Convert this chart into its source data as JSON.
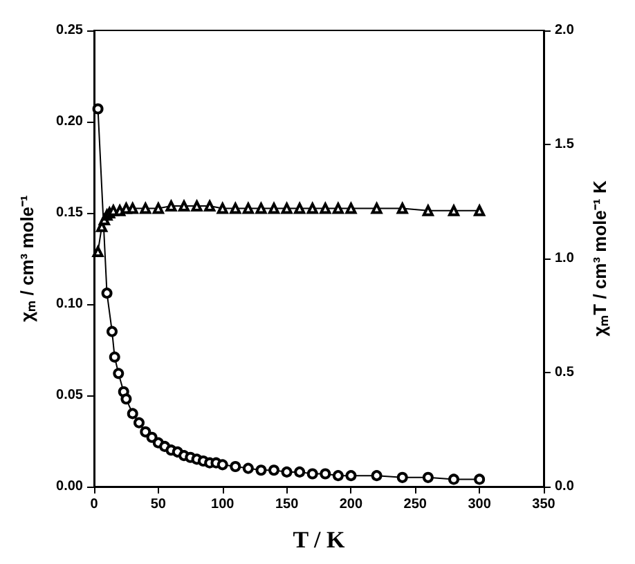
{
  "chart_data": {
    "type": "line",
    "xlabel": "T / K",
    "ylabel": "χₘ / cm³ mole⁻¹",
    "y2label": "χₘT / cm³ mole⁻¹ K",
    "xlim": [
      0,
      350
    ],
    "xticks": [
      0,
      50,
      100,
      150,
      200,
      250,
      300,
      350
    ],
    "ylim": [
      0,
      0.25
    ],
    "yticks": [
      {
        "value": 0,
        "label": "0.00"
      },
      {
        "value": 0.05,
        "label": "0.05"
      },
      {
        "value": 0.1,
        "label": "0.10"
      },
      {
        "value": 0.15,
        "label": "0.15"
      },
      {
        "value": 0.2,
        "label": "0.20"
      },
      {
        "value": 0.25,
        "label": "0.25"
      }
    ],
    "y2lim": [
      0,
      2
    ],
    "y2ticks": [
      {
        "value": 0,
        "label": "0.0"
      },
      {
        "value": 0.5,
        "label": "0.5"
      },
      {
        "value": 1,
        "label": "1.0"
      },
      {
        "value": 1.5,
        "label": "1.5"
      },
      {
        "value": 2,
        "label": "2.0"
      }
    ],
    "grid": false,
    "series": [
      {
        "color": "#000000",
        "marker": "circle",
        "x": [
          3,
          10,
          14,
          16,
          19,
          23,
          25,
          30,
          35,
          40,
          45,
          50,
          55,
          60,
          65,
          70,
          75,
          80,
          85,
          90,
          95,
          100,
          110,
          120,
          130,
          140,
          150,
          160,
          170,
          180,
          190,
          200,
          220,
          240,
          260,
          280,
          300
        ],
        "values": [
          0.207,
          0.106,
          0.085,
          0.071,
          0.062,
          0.052,
          0.048,
          0.04,
          0.035,
          0.03,
          0.027,
          0.024,
          0.022,
          0.02,
          0.019,
          0.017,
          0.016,
          0.015,
          0.014,
          0.013,
          0.013,
          0.012,
          0.011,
          0.01,
          0.009,
          0.009,
          0.008,
          0.008,
          0.007,
          0.007,
          0.006,
          0.006,
          0.006,
          0.005,
          0.005,
          0.004,
          0.004
        ]
      },
      {
        "color": "#000000",
        "marker": "triangle",
        "axis": "y2",
        "x": [
          3,
          6,
          8,
          10,
          12,
          15,
          20,
          25,
          30,
          40,
          50,
          60,
          70,
          80,
          90,
          100,
          110,
          120,
          130,
          140,
          150,
          160,
          170,
          180,
          190,
          200,
          220,
          240,
          260,
          280,
          300
        ],
        "values": [
          1.03,
          1.14,
          1.17,
          1.19,
          1.2,
          1.21,
          1.21,
          1.22,
          1.22,
          1.22,
          1.22,
          1.23,
          1.23,
          1.23,
          1.23,
          1.22,
          1.22,
          1.22,
          1.22,
          1.22,
          1.22,
          1.22,
          1.22,
          1.22,
          1.22,
          1.22,
          1.22,
          1.22,
          1.21,
          1.21,
          1.21
        ]
      }
    ]
  }
}
